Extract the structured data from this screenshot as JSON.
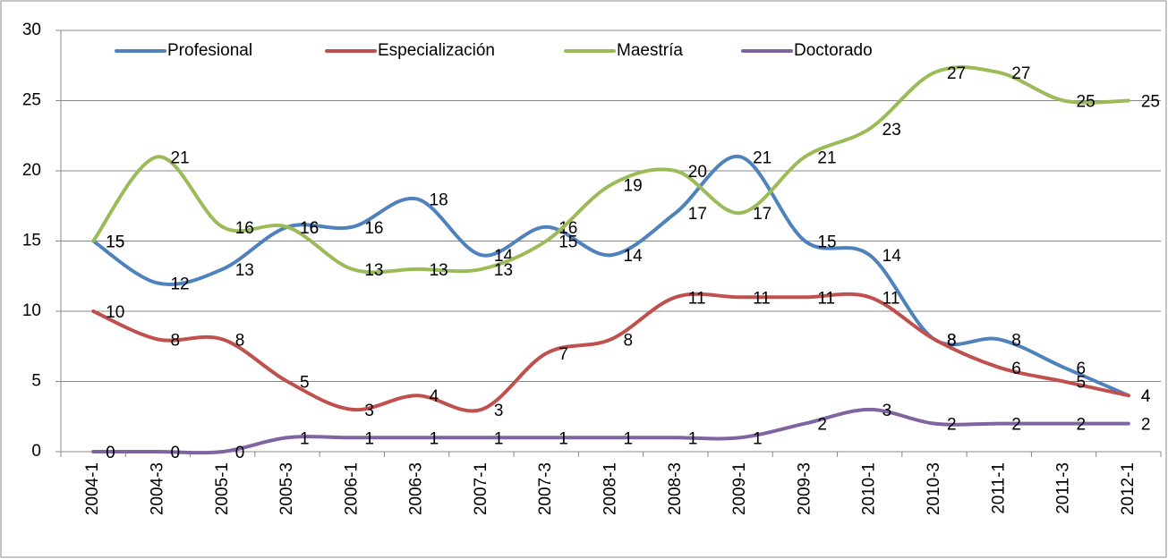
{
  "chart_data": {
    "type": "line",
    "categories": [
      "2004-1",
      "2004-3",
      "2005-1",
      "2005-3",
      "2006-1",
      "2006-3",
      "2007-1",
      "2007-3",
      "2008-1",
      "2008-3",
      "2009-1",
      "2009-3",
      "2010-1",
      "2010-3",
      "2011-1",
      "2011-3",
      "2012-1"
    ],
    "series": [
      {
        "name": "Profesional",
        "color": "#4f81bd",
        "values": [
          15,
          12,
          13,
          16,
          16,
          18,
          14,
          16,
          14,
          17,
          21,
          15,
          14,
          8,
          8,
          6,
          4
        ]
      },
      {
        "name": "Especialización",
        "color": "#c0504d",
        "values": [
          10,
          8,
          8,
          5,
          3,
          4,
          3,
          7,
          8,
          11,
          11,
          11,
          11,
          8,
          6,
          5,
          4
        ]
      },
      {
        "name": "Maestría",
        "color": "#9bbb59",
        "values": [
          15,
          21,
          16,
          16,
          13,
          13,
          13,
          15,
          19,
          20,
          17,
          21,
          23,
          27,
          27,
          25,
          25
        ]
      },
      {
        "name": "Doctorado",
        "color": "#8064a2",
        "values": [
          0,
          0,
          0,
          1,
          1,
          1,
          1,
          1,
          1,
          1,
          1,
          2,
          3,
          2,
          2,
          2,
          2
        ]
      }
    ],
    "ylim": [
      0,
      30
    ],
    "yticks": [
      0,
      5,
      10,
      15,
      20,
      25,
      30
    ],
    "grid": true,
    "smooth": true,
    "legend": "top"
  }
}
